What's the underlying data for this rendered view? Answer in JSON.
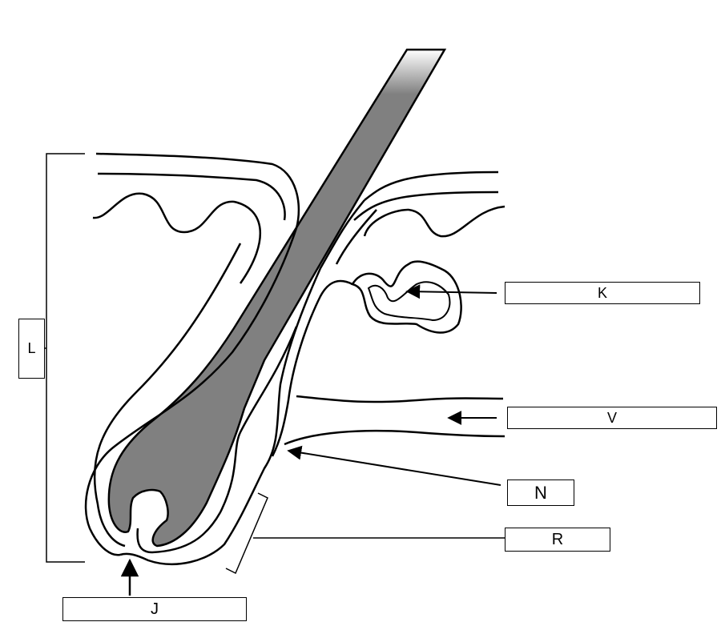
{
  "diagram": {
    "labels": {
      "K": "K",
      "V": "V",
      "N": "N",
      "R": "R",
      "J": "J",
      "L": "L"
    },
    "colors": {
      "line": "#000000",
      "hair_fill": "#808080",
      "background": "#ffffff"
    }
  }
}
